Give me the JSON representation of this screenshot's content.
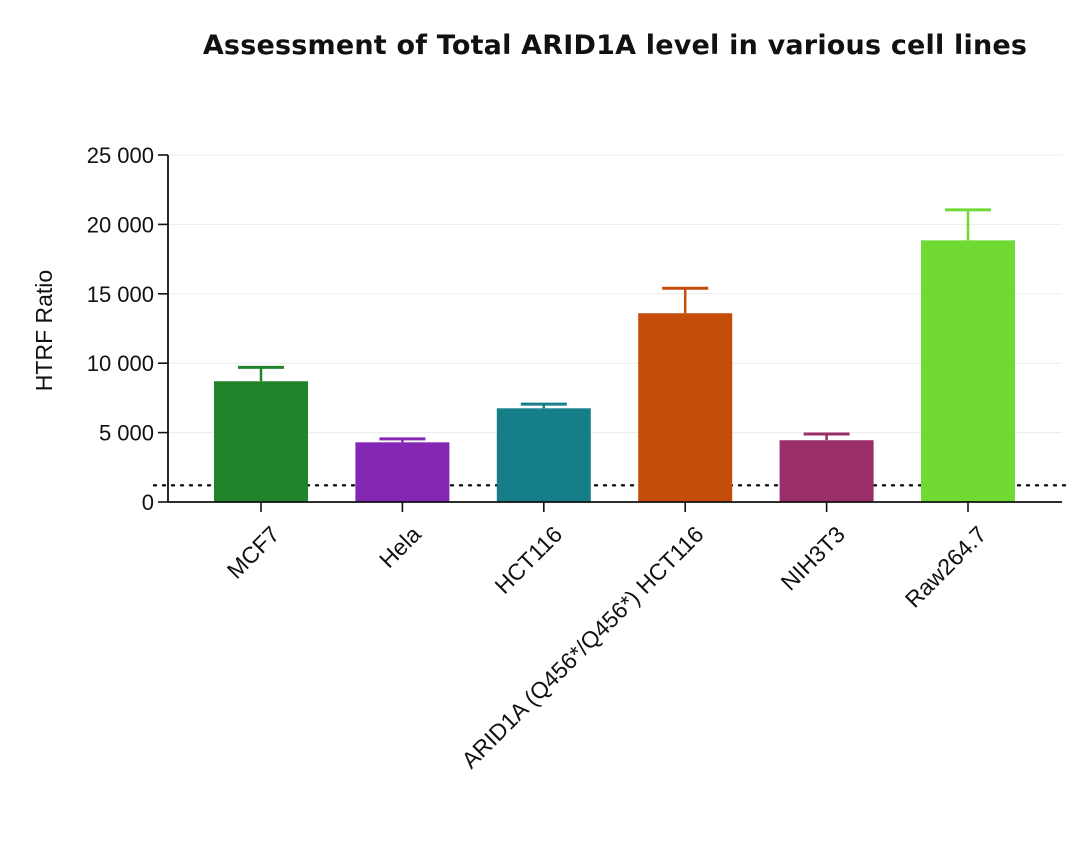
{
  "chart_data": {
    "type": "bar",
    "title": "Assessment of Total ARID1A level in various cell lines",
    "ylabel": "HTRF Ratio",
    "xlabel": "",
    "ylim": [
      0,
      25000
    ],
    "yticks": [
      0,
      5000,
      10000,
      15000,
      20000,
      25000
    ],
    "ytick_labels": [
      "0",
      "5 000",
      "10 000",
      "15 000",
      "20 000",
      "25 000"
    ],
    "categories": [
      "MCF7",
      "Hela",
      "HCT116",
      "ARID1A (Q456*/Q456*) HCT116",
      "NIH3T3",
      "Raw264.7"
    ],
    "values": [
      8700,
      4300,
      6750,
      13600,
      4450,
      18850
    ],
    "errors": [
      1000,
      250,
      300,
      1800,
      450,
      2200
    ],
    "colors": [
      "#22842a",
      "#8427b5",
      "#167e88",
      "#c54d09",
      "#9a2e6a",
      "#71d934"
    ],
    "reference_line": 1200,
    "grid": true
  }
}
